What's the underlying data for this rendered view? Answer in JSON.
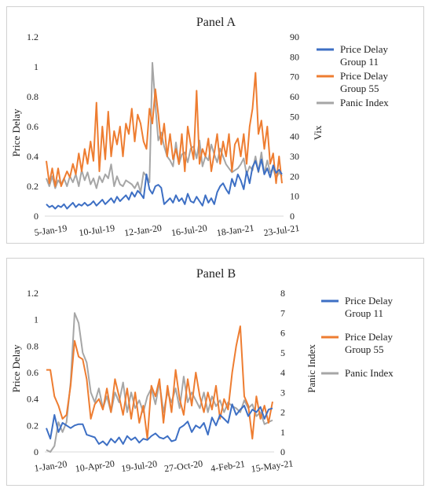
{
  "colors": {
    "group11": "#3d6fc4",
    "group55": "#ee7d31",
    "panic": "#a6a6a6",
    "axis": "#d9d9d9",
    "text": "#222222"
  },
  "chart_data": [
    {
      "type": "line",
      "title": "Panel A",
      "ylabel": "Price Delay",
      "y2label": "Vix",
      "ylim": [
        0,
        1.2
      ],
      "y2lim": [
        0,
        90
      ],
      "yticks": [
        "0",
        "0.2",
        "0.4",
        "0.6",
        "0.8",
        "1",
        "1.2"
      ],
      "y2ticks": [
        "0",
        "10",
        "20",
        "30",
        "40",
        "50",
        "60",
        "70",
        "80",
        "90"
      ],
      "xticks": [
        "5-Jan-19",
        "10-Jul-19",
        "12-Jan-20",
        "16-Jul-20",
        "18-Jan-21",
        "23-Jul-21"
      ],
      "legend": "right",
      "legend_entries": [
        {
          "key": "g11",
          "line1": "Price Delay",
          "line2": "Group 11"
        },
        {
          "key": "g55",
          "line1": "Price Delay",
          "line2": "Group 55"
        },
        {
          "key": "panic",
          "line1": "Panic Index",
          "line2": ""
        }
      ],
      "series": [
        {
          "name": "Price Delay Group 11",
          "axis": "left",
          "values": [
            0.08,
            0.06,
            0.07,
            0.05,
            0.07,
            0.06,
            0.08,
            0.05,
            0.07,
            0.09,
            0.06,
            0.08,
            0.07,
            0.09,
            0.07,
            0.08,
            0.1,
            0.07,
            0.09,
            0.11,
            0.08,
            0.1,
            0.12,
            0.09,
            0.13,
            0.1,
            0.12,
            0.14,
            0.11,
            0.16,
            0.13,
            0.17,
            0.15,
            0.12,
            0.28,
            0.18,
            0.15,
            0.2,
            0.21,
            0.19,
            0.08,
            0.1,
            0.12,
            0.09,
            0.14,
            0.1,
            0.12,
            0.08,
            0.15,
            0.1,
            0.09,
            0.13,
            0.1,
            0.07,
            0.14,
            0.09,
            0.12,
            0.08,
            0.16,
            0.2,
            0.22,
            0.18,
            0.15,
            0.25,
            0.2,
            0.28,
            0.24,
            0.18,
            0.3,
            0.22,
            0.33,
            0.37,
            0.3,
            0.38,
            0.28,
            0.32,
            0.26,
            0.34,
            0.29,
            0.31,
            0.28
          ]
        },
        {
          "name": "Price Delay Group 55",
          "axis": "left",
          "values": [
            0.37,
            0.22,
            0.32,
            0.2,
            0.32,
            0.2,
            0.25,
            0.3,
            0.26,
            0.35,
            0.28,
            0.42,
            0.3,
            0.45,
            0.35,
            0.5,
            0.37,
            0.76,
            0.3,
            0.6,
            0.38,
            0.7,
            0.4,
            0.57,
            0.48,
            0.6,
            0.4,
            0.62,
            0.55,
            0.72,
            0.5,
            0.68,
            0.62,
            0.5,
            0.45,
            0.72,
            0.62,
            0.85,
            0.68,
            0.48,
            0.62,
            0.4,
            0.55,
            0.38,
            0.45,
            0.35,
            0.55,
            0.3,
            0.6,
            0.48,
            0.38,
            0.84,
            0.35,
            0.45,
            0.4,
            0.52,
            0.3,
            0.42,
            0.55,
            0.35,
            0.5,
            0.4,
            0.55,
            0.3,
            0.48,
            0.52,
            0.4,
            0.55,
            0.35,
            0.6,
            0.72,
            0.96,
            0.55,
            0.64,
            0.45,
            0.6,
            0.35,
            0.42,
            0.22,
            0.4,
            0.22
          ]
        },
        {
          "name": "Panic Index",
          "axis": "right",
          "values": [
            19,
            15,
            20,
            14,
            18,
            16,
            19,
            15,
            20,
            17,
            21,
            15,
            23,
            18,
            22,
            16,
            19,
            14,
            20,
            17,
            21,
            19,
            26,
            15,
            20,
            16,
            15,
            18,
            17,
            16,
            14,
            17,
            12,
            22,
            20,
            17,
            77,
            56,
            38,
            42,
            35,
            30,
            28,
            25,
            37,
            26,
            31,
            32,
            27,
            34,
            35,
            29,
            38,
            25,
            30,
            28,
            36,
            31,
            27,
            34,
            30,
            26,
            24,
            22,
            23,
            24,
            26,
            29,
            21,
            25,
            23,
            30,
            22,
            32,
            21,
            28,
            22,
            24,
            19,
            22,
            20
          ]
        }
      ]
    },
    {
      "type": "line",
      "title": "Panel B",
      "ylabel": "Price Delay",
      "y2label": "Panic Index",
      "ylim": [
        0,
        1.2
      ],
      "y2lim": [
        0,
        8
      ],
      "yticks": [
        "0",
        "0.2",
        "0.4",
        "0.6",
        "0.8",
        "1",
        "1.2"
      ],
      "y2ticks": [
        "0",
        "1",
        "2",
        "3",
        "4",
        "5",
        "6",
        "7",
        "8"
      ],
      "xticks": [
        "1-Jan-20",
        "10-Apr-20",
        "19-Jul-20",
        "27-Oct-20",
        "4-Feb-21",
        "15-May-21"
      ],
      "legend": "right",
      "legend_entries": [
        {
          "key": "g11",
          "line1": "Price Delay",
          "line2": "Group 11"
        },
        {
          "key": "g55",
          "line1": "Price Delay",
          "line2": "Group 55"
        },
        {
          "key": "panic",
          "line1": "Panic Index",
          "line2": ""
        }
      ],
      "series": [
        {
          "name": "Price Delay Group 11",
          "axis": "left",
          "values": [
            0.18,
            0.1,
            0.28,
            0.15,
            0.22,
            0.2,
            0.18,
            0.2,
            0.21,
            0.21,
            0.13,
            0.12,
            0.11,
            0.06,
            0.08,
            0.05,
            0.1,
            0.07,
            0.11,
            0.06,
            0.12,
            0.09,
            0.11,
            0.07,
            0.1,
            0.09,
            0.12,
            0.14,
            0.11,
            0.1,
            0.12,
            0.08,
            0.09,
            0.18,
            0.2,
            0.23,
            0.15,
            0.2,
            0.18,
            0.22,
            0.13,
            0.26,
            0.2,
            0.28,
            0.25,
            0.22,
            0.36,
            0.28,
            0.32,
            0.35,
            0.27,
            0.32,
            0.3,
            0.34,
            0.25,
            0.32,
            0.33
          ]
        },
        {
          "name": "Price Delay Group 55",
          "axis": "left",
          "values": [
            0.62,
            0.62,
            0.42,
            0.35,
            0.25,
            0.28,
            0.5,
            0.84,
            0.72,
            0.7,
            0.55,
            0.25,
            0.36,
            0.4,
            0.32,
            0.48,
            0.3,
            0.55,
            0.42,
            0.28,
            0.48,
            0.25,
            0.45,
            0.22,
            0.35,
            0.1,
            0.5,
            0.42,
            0.55,
            0.22,
            0.5,
            0.3,
            0.62,
            0.4,
            0.28,
            0.55,
            0.35,
            0.6,
            0.42,
            0.3,
            0.45,
            0.32,
            0.5,
            0.25,
            0.4,
            0.32,
            0.6,
            0.8,
            0.95,
            0.42,
            0.35,
            0.1,
            0.42,
            0.25,
            0.35,
            0.22,
            0.38
          ]
        },
        {
          "name": "Panic Index",
          "axis": "right",
          "values": [
            0.1,
            0.0,
            0.3,
            1.5,
            1.0,
            1.5,
            3.5,
            7.0,
            6.5,
            5.0,
            4.5,
            3.0,
            2.5,
            3.2,
            2.2,
            2.8,
            2.0,
            3.0,
            2.5,
            3.5,
            2.0,
            3.0,
            2.2,
            2.6,
            2.0,
            2.8,
            3.2,
            2.4,
            3.5,
            2.0,
            3.0,
            2.5,
            3.2,
            2.2,
            3.8,
            2.5,
            3.0,
            2.6,
            2.2,
            3.0,
            2.0,
            2.8,
            2.3,
            2.6,
            2.0,
            2.5,
            2.3,
            2.2,
            2.0,
            2.6,
            2.2,
            2.4,
            1.8,
            2.0,
            1.4,
            1.5,
            1.6
          ]
        }
      ]
    }
  ]
}
